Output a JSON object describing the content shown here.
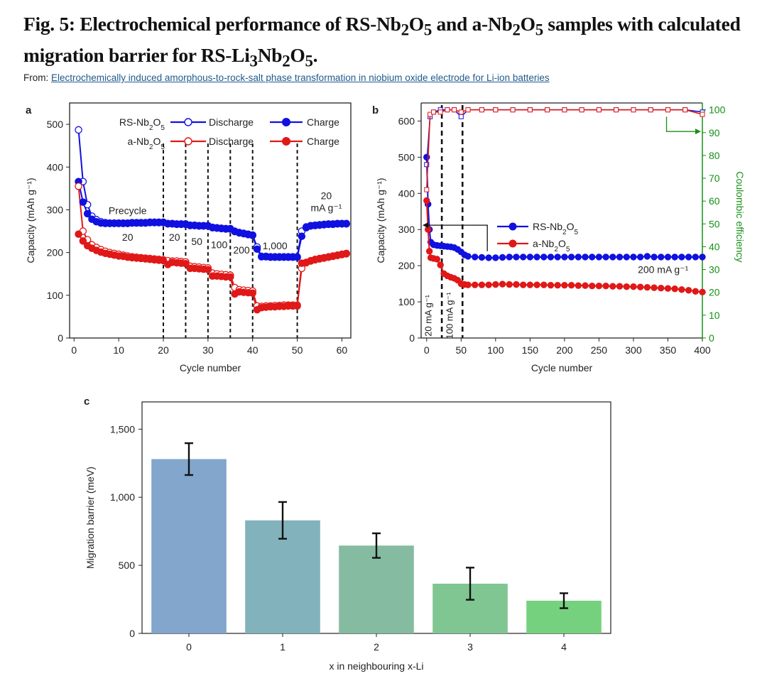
{
  "figure": {
    "title_parts": [
      "Fig. 5: Electrochemical performance of RS-Nb",
      "2",
      "O",
      "5",
      " and a-Nb",
      "2",
      "O",
      "5",
      " samples with calculated migration barrier for RS-Li",
      "3",
      "Nb",
      "2",
      "O",
      "5",
      "."
    ],
    "from_label": "From:",
    "from_link": "Electrochemically induced amorphous-to-rock-salt phase transformation in niobium oxide electrode for Li-ion batteries"
  },
  "colors": {
    "blue": "#1010e0",
    "red": "#e01818",
    "green": "#169016",
    "axis": "#222222"
  },
  "chart_data": [
    {
      "panel": "a",
      "type": "line",
      "xlabel": "Cycle number",
      "ylabel": "Capacity (mAh g⁻¹)",
      "xlim": [
        -1,
        62
      ],
      "ylim": [
        0,
        550
      ],
      "xticks": [
        0,
        10,
        20,
        30,
        40,
        50,
        60
      ],
      "yticks": [
        0,
        100,
        200,
        300,
        400,
        500
      ],
      "vlines": [
        20,
        25,
        30,
        35,
        40,
        50
      ],
      "legend": {
        "rows": [
          {
            "sample": "RS-Nb2O5",
            "discharge": "Discharge",
            "charge": "Charge",
            "color": "#1010e0"
          },
          {
            "sample": "a-Nb2O5",
            "discharge": "Discharge",
            "charge": "Charge",
            "color": "#e01818"
          }
        ]
      },
      "annotations": [
        {
          "text": "Precycle",
          "x": 12,
          "y": 290
        },
        {
          "text": "20",
          "x": 12,
          "y": 228
        },
        {
          "text": "20",
          "x": 22.5,
          "y": 228
        },
        {
          "text": "50",
          "x": 27.5,
          "y": 218
        },
        {
          "text": "100",
          "x": 32.5,
          "y": 210
        },
        {
          "text": "200",
          "x": 37.5,
          "y": 198
        },
        {
          "text": "1,000",
          "x": 45,
          "y": 208
        },
        {
          "text": "20",
          "x": 56.5,
          "y": 325
        },
        {
          "text": "mA g⁻¹",
          "x": 56.5,
          "y": 297
        }
      ],
      "series": [
        {
          "name": "RS-Nb2O5 Discharge",
          "color": "#1010e0",
          "marker": "open",
          "x": [
            1,
            2,
            3,
            4,
            5,
            6,
            7,
            8,
            9,
            10,
            11,
            12,
            13,
            14,
            15,
            16,
            17,
            18,
            19,
            20,
            21,
            22,
            23,
            24,
            25,
            26,
            27,
            28,
            29,
            30,
            31,
            32,
            33,
            34,
            35,
            36,
            37,
            38,
            39,
            40,
            41,
            42,
            43,
            44,
            45,
            46,
            47,
            48,
            49,
            50,
            51,
            52,
            53,
            54,
            55,
            56,
            57,
            58,
            59,
            60,
            61
          ],
          "y": [
            487,
            366,
            312,
            285,
            277,
            272,
            270,
            269,
            269,
            269,
            269,
            269,
            270,
            270,
            270,
            270,
            271,
            271,
            271,
            271,
            268,
            268,
            267,
            267,
            267,
            264,
            264,
            263,
            263,
            263,
            259,
            258,
            257,
            256,
            256,
            250,
            247,
            245,
            243,
            241,
            213,
            191,
            191,
            190,
            190,
            190,
            190,
            190,
            190,
            190,
            250,
            260,
            263,
            264,
            265,
            266,
            267,
            267,
            268,
            268,
            268
          ]
        },
        {
          "name": "RS-Nb2O5 Charge",
          "color": "#1010e0",
          "marker": "filled",
          "x": [
            1,
            2,
            3,
            4,
            5,
            6,
            7,
            8,
            9,
            10,
            11,
            12,
            13,
            14,
            15,
            16,
            17,
            18,
            19,
            20,
            21,
            22,
            23,
            24,
            25,
            26,
            27,
            28,
            29,
            30,
            31,
            32,
            33,
            34,
            35,
            36,
            37,
            38,
            39,
            40,
            41,
            42,
            43,
            44,
            45,
            46,
            47,
            48,
            49,
            50,
            51,
            52,
            53,
            54,
            55,
            56,
            57,
            58,
            59,
            60,
            61
          ],
          "y": [
            366,
            318,
            291,
            278,
            272,
            269,
            268,
            268,
            268,
            268,
            268,
            268,
            269,
            269,
            269,
            269,
            270,
            270,
            270,
            270,
            267,
            267,
            266,
            266,
            266,
            263,
            263,
            262,
            262,
            262,
            258,
            257,
            256,
            255,
            255,
            249,
            246,
            244,
            242,
            240,
            208,
            190,
            190,
            189,
            189,
            189,
            189,
            189,
            189,
            189,
            238,
            258,
            262,
            263,
            264,
            265,
            266,
            266,
            267,
            267,
            267
          ]
        },
        {
          "name": "a-Nb2O5 Discharge",
          "color": "#e01818",
          "marker": "open",
          "x": [
            1,
            2,
            3,
            4,
            5,
            6,
            7,
            8,
            9,
            10,
            11,
            12,
            13,
            14,
            15,
            16,
            17,
            18,
            19,
            20,
            21,
            22,
            23,
            24,
            25,
            26,
            27,
            28,
            29,
            30,
            31,
            32,
            33,
            34,
            35,
            36,
            37,
            38,
            39,
            40,
            41,
            42,
            43,
            44,
            45,
            46,
            47,
            48,
            49,
            50,
            51,
            52,
            53,
            54,
            55,
            56,
            57,
            58,
            59,
            60,
            61
          ],
          "y": [
            355,
            250,
            230,
            218,
            212,
            207,
            203,
            200,
            198,
            196,
            194,
            192,
            190,
            189,
            188,
            187,
            186,
            185,
            184,
            183,
            181,
            180,
            180,
            179,
            178,
            168,
            167,
            166,
            165,
            164,
            152,
            150,
            149,
            148,
            147,
            118,
            113,
            112,
            111,
            110,
            75,
            74,
            75,
            75,
            76,
            76,
            77,
            77,
            77,
            77,
            163,
            177,
            181,
            184,
            186,
            188,
            190,
            192,
            194,
            196,
            198
          ]
        },
        {
          "name": "a-Nb2O5 Charge",
          "color": "#e01818",
          "marker": "filled",
          "x": [
            1,
            2,
            3,
            4,
            5,
            6,
            7,
            8,
            9,
            10,
            11,
            12,
            13,
            14,
            15,
            16,
            17,
            18,
            19,
            20,
            21,
            22,
            23,
            24,
            25,
            26,
            27,
            28,
            29,
            30,
            31,
            32,
            33,
            34,
            35,
            36,
            37,
            38,
            39,
            40,
            41,
            42,
            43,
            44,
            45,
            46,
            47,
            48,
            49,
            50,
            51,
            52,
            53,
            54,
            55,
            56,
            57,
            58,
            59,
            60,
            61
          ],
          "y": [
            243,
            227,
            216,
            210,
            205,
            201,
            198,
            196,
            194,
            192,
            191,
            189,
            188,
            187,
            186,
            185,
            184,
            183,
            182,
            181,
            172,
            177,
            176,
            175,
            174,
            163,
            163,
            162,
            161,
            160,
            145,
            145,
            144,
            143,
            143,
            103,
            108,
            107,
            106,
            105,
            66,
            71,
            72,
            73,
            73,
            74,
            74,
            75,
            75,
            75,
            175,
            176,
            180,
            183,
            185,
            187,
            189,
            191,
            193,
            195,
            197
          ]
        }
      ]
    },
    {
      "panel": "b",
      "type": "line",
      "xlabel": "Cycle number",
      "ylabel": "Capacity (mAh g⁻¹)",
      "y2label": "Coulombic efficiency",
      "xlim": [
        -8,
        400
      ],
      "ylim": [
        0,
        650
      ],
      "y2lim": [
        0,
        103
      ],
      "xticks": [
        0,
        50,
        100,
        150,
        200,
        250,
        300,
        350,
        400
      ],
      "yticks": [
        0,
        100,
        200,
        300,
        400,
        500,
        600
      ],
      "y2ticks": [
        0,
        10,
        20,
        30,
        40,
        50,
        60,
        70,
        80,
        90,
        100
      ],
      "vlines": [
        22,
        52
      ],
      "legend": [
        {
          "label": "RS-Nb2O5",
          "color": "#1010e0"
        },
        {
          "label": "a-Nb2O5",
          "color": "#e01818"
        }
      ],
      "annotations": [
        {
          "text": "200 mA g⁻¹",
          "x": 343,
          "y": 180
        },
        {
          "text": "20 mA g⁻¹",
          "x": 7,
          "y": 62,
          "rotate": -90
        },
        {
          "text": "100 mA g⁻¹",
          "x": 38,
          "y": 62,
          "rotate": -90
        }
      ],
      "series": [
        {
          "name": "RS-Nb2O5 capacity",
          "color": "#1010e0",
          "axis": "left",
          "x": [
            0,
            2,
            4,
            6,
            10,
            15,
            20,
            25,
            30,
            35,
            40,
            45,
            50,
            55,
            60,
            70,
            80,
            90,
            100,
            110,
            120,
            130,
            140,
            150,
            160,
            170,
            180,
            190,
            200,
            210,
            220,
            230,
            240,
            250,
            260,
            270,
            280,
            290,
            300,
            310,
            320,
            330,
            340,
            350,
            360,
            370,
            380,
            390,
            400
          ],
          "y": [
            500,
            370,
            300,
            265,
            258,
            256,
            255,
            254,
            253,
            252,
            250,
            245,
            238,
            230,
            226,
            224,
            223,
            222,
            222,
            223,
            224,
            224,
            224,
            224,
            224,
            224,
            224,
            224,
            224,
            224,
            224,
            224,
            224,
            224,
            224,
            224,
            224,
            224,
            224,
            224,
            226,
            224,
            224,
            224,
            224,
            224,
            224,
            224,
            224
          ]
        },
        {
          "name": "a-Nb2O5 capacity",
          "color": "#e01818",
          "axis": "left",
          "x": [
            0,
            2,
            4,
            6,
            10,
            15,
            20,
            25,
            30,
            35,
            40,
            45,
            50,
            55,
            60,
            70,
            80,
            90,
            100,
            110,
            120,
            130,
            140,
            150,
            160,
            170,
            180,
            190,
            200,
            210,
            220,
            230,
            240,
            250,
            260,
            270,
            280,
            290,
            300,
            310,
            320,
            330,
            340,
            350,
            360,
            370,
            380,
            390,
            400
          ],
          "y": [
            380,
            300,
            240,
            222,
            220,
            218,
            202,
            178,
            172,
            168,
            165,
            160,
            150,
            148,
            147,
            147,
            147,
            147,
            148,
            149,
            148,
            148,
            147,
            147,
            147,
            147,
            146,
            146,
            146,
            146,
            145,
            145,
            144,
            144,
            144,
            143,
            143,
            142,
            142,
            141,
            140,
            139,
            138,
            137,
            136,
            134,
            132,
            129,
            127
          ]
        },
        {
          "name": "RS-Nb2O5 Coulombic efficiency",
          "color": "#1010e0",
          "axis": "right",
          "x": [
            0,
            5,
            10,
            20,
            30,
            40,
            50,
            60,
            80,
            100,
            125,
            150,
            175,
            200,
            225,
            250,
            275,
            300,
            325,
            350,
            375,
            400
          ],
          "y": [
            76,
            97,
            99,
            100,
            100,
            100,
            97,
            100,
            100,
            100,
            100,
            100,
            100,
            100,
            100,
            100,
            100,
            100,
            100,
            100,
            100,
            99
          ]
        },
        {
          "name": "a-Nb2O5 Coulombic efficiency",
          "color": "#e01818",
          "axis": "right",
          "x": [
            0,
            5,
            10,
            20,
            30,
            40,
            50,
            60,
            80,
            100,
            125,
            150,
            175,
            200,
            225,
            250,
            275,
            300,
            325,
            350,
            375,
            400
          ],
          "y": [
            65,
            98,
            99,
            99,
            100,
            100,
            99,
            100,
            100,
            100,
            100,
            100,
            100,
            100,
            100,
            100,
            100,
            100,
            100,
            100,
            100,
            98
          ]
        }
      ]
    },
    {
      "panel": "c",
      "type": "bar",
      "xlabel": "x in neighbouring x-Li",
      "ylabel": "Migration barrier (meV)",
      "ylim": [
        0,
        1700
      ],
      "yticks": [
        0,
        500,
        1000,
        1500
      ],
      "ytick_labels": [
        "0",
        "500",
        "1,000",
        "1,500"
      ],
      "categories": [
        "0",
        "1",
        "2",
        "3",
        "4"
      ],
      "values": [
        1280,
        830,
        645,
        365,
        240
      ],
      "errors": [
        117,
        135,
        90,
        118,
        55
      ],
      "bar_colors": [
        "#82a6cc",
        "#82b2bb",
        "#85bba0",
        "#7fc693",
        "#76d17f"
      ]
    }
  ]
}
